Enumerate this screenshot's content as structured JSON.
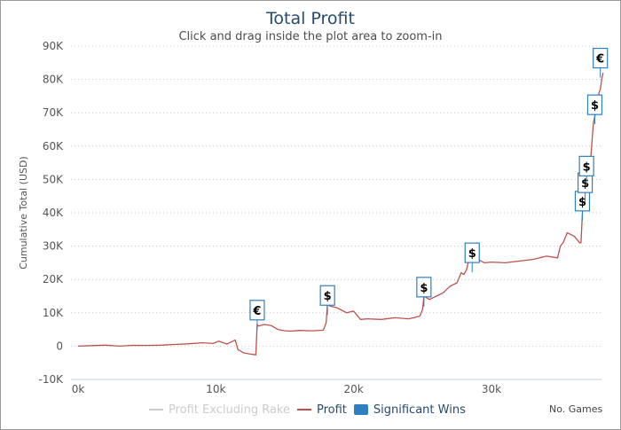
{
  "chart_data": {
    "type": "line",
    "title": "Total Profit",
    "subtitle": "Click and drag inside the plot area to zoom-in",
    "ylabel": "Cumulative Total (USD)",
    "xlabel": "No. Games",
    "xlim": [
      0,
      38500
    ],
    "ylim": [
      -10000,
      90000
    ],
    "y_ticks": [
      -10000,
      0,
      10000,
      20000,
      30000,
      40000,
      50000,
      60000,
      70000,
      80000,
      90000
    ],
    "y_tick_labels": [
      "-10K",
      "0",
      "10K",
      "20K",
      "30K",
      "40K",
      "50K",
      "60K",
      "70K",
      "80K",
      "90K"
    ],
    "x_ticks": [
      0,
      10000,
      20000,
      30000
    ],
    "x_tick_labels": [
      "0k",
      "10k",
      "20k",
      "30k"
    ],
    "grid": true,
    "series": [
      {
        "name": "Profit",
        "color": "#c0504d",
        "x": [
          0,
          1000,
          2000,
          3000,
          4000,
          5000,
          6000,
          7000,
          8000,
          9000,
          9800,
          10200,
          10800,
          11400,
          11600,
          12000,
          12500,
          12900,
          13000,
          13100,
          13500,
          14000,
          14500,
          15000,
          15500,
          16000,
          17000,
          17800,
          18000,
          18100,
          18300,
          18800,
          19500,
          20000,
          20500,
          21000,
          22000,
          23000,
          24000,
          24800,
          25000,
          25100,
          25500,
          26000,
          26500,
          27000,
          27500,
          27800,
          28000,
          28200,
          28500,
          29000,
          29500,
          30000,
          31000,
          32000,
          33000,
          34000,
          34800,
          35000,
          35200,
          35500,
          36000,
          36400,
          36500,
          36600,
          36700,
          36800,
          37000,
          37200,
          37400,
          37500,
          37600,
          37700,
          37800,
          37900,
          38000,
          38100
        ],
        "values": [
          0,
          150,
          300,
          0,
          250,
          200,
          300,
          500,
          700,
          1000,
          800,
          1500,
          600,
          1800,
          -1000,
          -2000,
          -2400,
          -2600,
          6500,
          6000,
          6500,
          6200,
          5000,
          4600,
          4500,
          4700,
          4600,
          4800,
          7000,
          12500,
          12000,
          11500,
          10000,
          10500,
          8000,
          8200,
          8000,
          8500,
          8200,
          9000,
          11000,
          15000,
          14000,
          15000,
          16000,
          18000,
          19000,
          22000,
          21500,
          23000,
          28500,
          26000,
          25000,
          25200,
          25000,
          25500,
          26000,
          27000,
          26500,
          30000,
          31000,
          34000,
          33000,
          31000,
          31000,
          40000,
          46000,
          52000,
          55000,
          56000,
          67000,
          69000,
          70000,
          72000,
          76000,
          77000,
          80000,
          82000
        ]
      },
      {
        "name": "Profit Excluding Rake",
        "color": "#cccccc",
        "x": [],
        "values": []
      }
    ],
    "flags": [
      {
        "x": 13000,
        "y": 10800,
        "label": "€"
      },
      {
        "x": 18100,
        "y": 15200,
        "label": "$"
      },
      {
        "x": 25100,
        "y": 17700,
        "label": "$"
      },
      {
        "x": 28600,
        "y": 28000,
        "label": "$"
      },
      {
        "x": 36600,
        "y": 43500,
        "label": "$"
      },
      {
        "x": 36800,
        "y": 49000,
        "label": "$"
      },
      {
        "x": 36900,
        "y": 54000,
        "label": "$"
      },
      {
        "x": 37500,
        "y": 72400,
        "label": "$"
      },
      {
        "x": 37900,
        "y": 86400,
        "label": "€"
      }
    ],
    "legend": [
      {
        "name": "Profit Excluding Rake",
        "color": "#cccccc",
        "style": "line",
        "hidden": true
      },
      {
        "name": "Profit",
        "color": "#c0504d",
        "style": "line",
        "hidden": false
      },
      {
        "name": "Significant Wins",
        "color": "#2d7fc2",
        "style": "box",
        "hidden": false
      }
    ]
  }
}
